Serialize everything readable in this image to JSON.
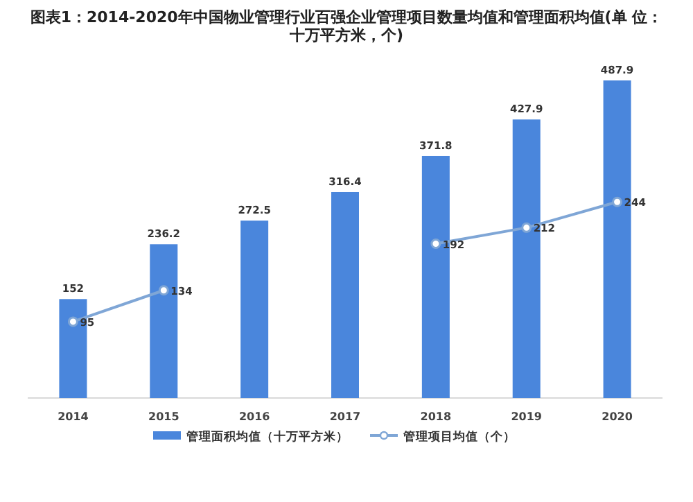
{
  "chart_data": {
    "type": "bar",
    "title": "图表1：2014-2020年中国物业管理行业百强企业管理项目数量均值和管理面积均值(单 位：十万平方米，个)",
    "categories": [
      "2014",
      "2015",
      "2016",
      "2017",
      "2018",
      "2019",
      "2020"
    ],
    "series": [
      {
        "name": "管理面积均值（十万平方米）",
        "color": "#4a86dc",
        "values": [
          152,
          236.2,
          272.5,
          316.4,
          371.8,
          427.9,
          487.9
        ]
      },
      {
        "name": "管理项目均值（个）",
        "type": "line",
        "axis": "y2",
        "color": "#7fa6d6",
        "values": [
          95,
          134,
          null,
          null,
          192,
          212,
          244
        ]
      }
    ],
    "data_labels": true,
    "legend": "bottom",
    "marker": "circle"
  }
}
